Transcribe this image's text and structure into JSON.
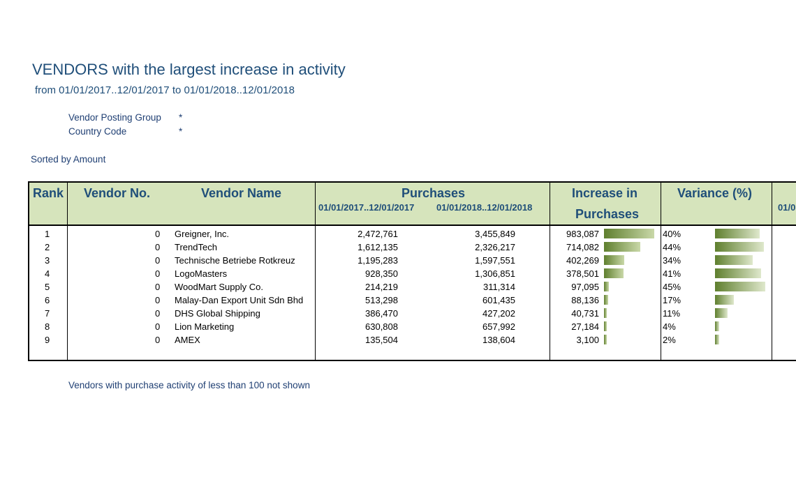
{
  "report": {
    "title": "VENDORS with the largest increase in activity",
    "subtitle": "from 01/01/2017..12/01/2017 to 01/01/2018..12/01/2018",
    "filters": [
      {
        "label": "Vendor Posting Group",
        "value": "*"
      },
      {
        "label": "Country Code",
        "value": "*"
      }
    ],
    "sorted_by": "Sorted by Amount",
    "footnote": "Vendors with purchase activity of less than 100 not shown"
  },
  "table": {
    "headers": {
      "rank": "Rank",
      "vendor_no": "Vendor No.",
      "vendor_name": "Vendor Name",
      "purchases": "Purchases",
      "period1": "01/01/2017..12/01/2017",
      "period2": "01/01/2018..12/01/2018",
      "increase_line1": "Increase in",
      "increase_line2": "Purchases",
      "variance": "Variance (%)",
      "next_period": "01/0"
    },
    "rows": [
      {
        "rank": "1",
        "vendor_no": "0",
        "name": "Greigner, Inc.",
        "p1": "2,472,761",
        "p2": "3,455,849",
        "increase": "983,087",
        "increase_value": 983087,
        "variance": "40%",
        "variance_value": 40
      },
      {
        "rank": "2",
        "vendor_no": "0",
        "name": "TrendTech",
        "p1": "1,612,135",
        "p2": "2,326,217",
        "increase": "714,082",
        "increase_value": 714082,
        "variance": "44%",
        "variance_value": 44
      },
      {
        "rank": "3",
        "vendor_no": "0",
        "name": "Technische Betriebe Rotkreuz",
        "p1": "1,195,283",
        "p2": "1,597,551",
        "increase": "402,269",
        "increase_value": 402269,
        "variance": "34%",
        "variance_value": 34
      },
      {
        "rank": "4",
        "vendor_no": "0",
        "name": "LogoMasters",
        "p1": "928,350",
        "p2": "1,306,851",
        "increase": "378,501",
        "increase_value": 378501,
        "variance": "41%",
        "variance_value": 41
      },
      {
        "rank": "5",
        "vendor_no": "0",
        "name": "WoodMart Supply Co.",
        "p1": "214,219",
        "p2": "311,314",
        "increase": "97,095",
        "increase_value": 97095,
        "variance": "45%",
        "variance_value": 45
      },
      {
        "rank": "6",
        "vendor_no": "0",
        "name": "Malay-Dan Export Unit Sdn Bhd",
        "p1": "513,298",
        "p2": "601,435",
        "increase": "88,136",
        "increase_value": 88136,
        "variance": "17%",
        "variance_value": 17
      },
      {
        "rank": "7",
        "vendor_no": "0",
        "name": "DHS Global Shipping",
        "p1": "386,470",
        "p2": "427,202",
        "increase": "40,731",
        "increase_value": 40731,
        "variance": "11%",
        "variance_value": 11
      },
      {
        "rank": "8",
        "vendor_no": "0",
        "name": "Lion Marketing",
        "p1": "630,808",
        "p2": "657,992",
        "increase": "27,184",
        "increase_value": 27184,
        "variance": "4%",
        "variance_value": 4
      },
      {
        "rank": "9",
        "vendor_no": "0",
        "name": "AMEX",
        "p1": "135,504",
        "p2": "138,604",
        "increase": "3,100",
        "increase_value": 3100,
        "variance": "2%",
        "variance_value": 2
      }
    ]
  }
}
